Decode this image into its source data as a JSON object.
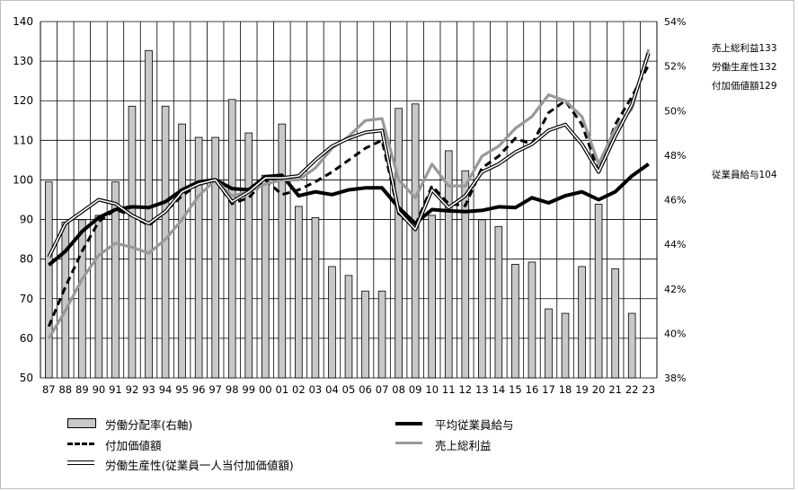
{
  "chart_data": {
    "type": "bar+line",
    "categories": [
      "87",
      "88",
      "89",
      "90",
      "91",
      "92",
      "93",
      "94",
      "95",
      "96",
      "97",
      "98",
      "99",
      "00",
      "01",
      "02",
      "03",
      "04",
      "05",
      "06",
      "07",
      "08",
      "09",
      "10",
      "11",
      "12",
      "13",
      "14",
      "15",
      "16",
      "17",
      "18",
      "19",
      "20",
      "21",
      "22",
      "23"
    ],
    "y_left": {
      "min": 50,
      "max": 140,
      "ticks": [
        "50",
        "60",
        "70",
        "80",
        "90",
        "100",
        "110",
        "120",
        "130",
        "140"
      ]
    },
    "y_right": {
      "min": 38,
      "max": 54,
      "ticks": [
        "38%",
        "40%",
        "42%",
        "44%",
        "46%",
        "48%",
        "50%",
        "52%",
        "54%"
      ]
    },
    "series": [
      {
        "name": "労働分配率(右軸)",
        "kind": "bar",
        "axis": "right",
        "color": "#c8c8c8",
        "values": [
          46.8,
          45.0,
          45.1,
          45.3,
          46.8,
          50.2,
          52.7,
          50.2,
          49.4,
          48.8,
          48.8,
          50.5,
          49.0,
          47.1,
          49.4,
          45.7,
          45.2,
          43.0,
          42.6,
          41.9,
          41.9,
          50.1,
          50.3,
          45.3,
          48.2,
          47.3,
          45.1,
          44.8,
          43.1,
          43.2,
          41.1,
          40.9,
          43.0,
          45.8,
          42.9,
          40.9,
          37.6
        ]
      },
      {
        "name": "平均従業員給与",
        "kind": "line",
        "color": "#000000",
        "style": "solid-thick",
        "values": [
          78.5,
          82,
          87,
          90.5,
          92.5,
          93.2,
          93,
          94.5,
          97.5,
          99.5,
          100,
          97.8,
          97.5,
          100.8,
          101.2,
          96,
          97,
          96.3,
          97.5,
          98,
          98,
          93,
          89,
          92.5,
          92.2,
          92,
          92.3,
          93.2,
          93,
          95.5,
          94.2,
          96,
          97,
          95,
          97,
          101,
          104
        ]
      },
      {
        "name": "付加価値額",
        "kind": "line",
        "color": "#000000",
        "style": "dashed",
        "values": [
          63,
          73,
          82,
          89.5,
          92.5,
          91,
          88.5,
          92,
          96,
          99,
          100,
          94,
          95.5,
          100,
          96.3,
          97.5,
          99.5,
          102,
          105,
          108,
          110,
          91.5,
          88.5,
          98.5,
          94,
          93.5,
          103,
          106,
          110.5,
          109,
          117,
          120,
          114,
          102,
          114,
          121,
          129
        ]
      },
      {
        "name": "売上総利益",
        "kind": "line",
        "color": "#999999",
        "style": "solid",
        "values": [
          60,
          67,
          75,
          81,
          84,
          83,
          81.5,
          85,
          90,
          96,
          100,
          96,
          97,
          99,
          100,
          100,
          103,
          108,
          111,
          115,
          115.5,
          100,
          95.5,
          104,
          98.5,
          98.5,
          106,
          108.5,
          113,
          116,
          121.5,
          120,
          116,
          104,
          113,
          118,
          133
        ]
      },
      {
        "name": "労働生産性(従業員一人当付加価値額)",
        "kind": "line",
        "color": "#000000",
        "style": "double",
        "values": [
          80.5,
          89,
          92,
          95,
          94,
          91,
          89,
          92,
          97,
          99,
          100,
          94.5,
          97,
          100.5,
          100.5,
          101,
          105,
          108.5,
          110.5,
          112,
          112.5,
          92,
          87.5,
          97.5,
          93,
          96,
          102,
          104,
          107,
          109,
          112.5,
          114,
          109,
          102,
          111,
          119,
          132
        ]
      }
    ],
    "end_labels": [
      "売上総利益133",
      "労働生産性132",
      "付加価値額129",
      "従業員給与104"
    ]
  },
  "legend": {
    "bar": "労働分配率(右軸)",
    "avg_salary": "平均従業員給与",
    "value_added": "付加価値額",
    "gross_profit": "売上総利益",
    "productivity": "労働生産性(従業員一人当付加価値額)"
  },
  "colors": {
    "bar_fill": "#c8c8c8",
    "bar_stroke": "#000000",
    "gray_line": "#999999",
    "grid": "#000000"
  }
}
